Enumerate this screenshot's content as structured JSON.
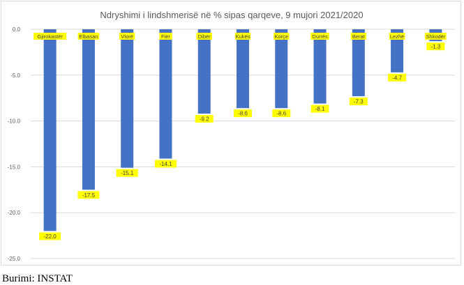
{
  "chart_data": {
    "type": "bar",
    "title": "Ndryshimi i lindshmerisë në % sipas qarqeve, 9 mujori 2021/2020",
    "categories": [
      "Gjirokastër",
      "Elbasan",
      "Vlorë",
      "Fier",
      "Dibër",
      "Kukës",
      "Korçe",
      "Durrës",
      "Berat",
      "Lezhë",
      "Shkodër"
    ],
    "values": [
      -22.0,
      -17.5,
      -15.1,
      -14.1,
      -9.2,
      -8.6,
      -8.6,
      -8.1,
      -7.3,
      -4.7,
      -1.3
    ],
    "value_labels": [
      "-22.0",
      "-17.5",
      "-15.1",
      "-14.1",
      "-9.2",
      "-8.6",
      "-8.6",
      "-8.1",
      "-7.3",
      "-4.7",
      "-1.3"
    ],
    "ylim": [
      -25,
      0
    ],
    "yticks": [
      0,
      -5,
      -10,
      -15,
      -20,
      -25
    ],
    "ytick_labels": [
      "0.0",
      "-5.0",
      "-10.0",
      "-15.0",
      "-20.0",
      "-25.0"
    ],
    "grid": true,
    "xlabel": "",
    "ylabel": "",
    "colors": {
      "bar": "#4472c4",
      "label_bg": "#ffff00",
      "grid": "#d9d9d9"
    }
  },
  "source": "Burimi: INSTAT"
}
